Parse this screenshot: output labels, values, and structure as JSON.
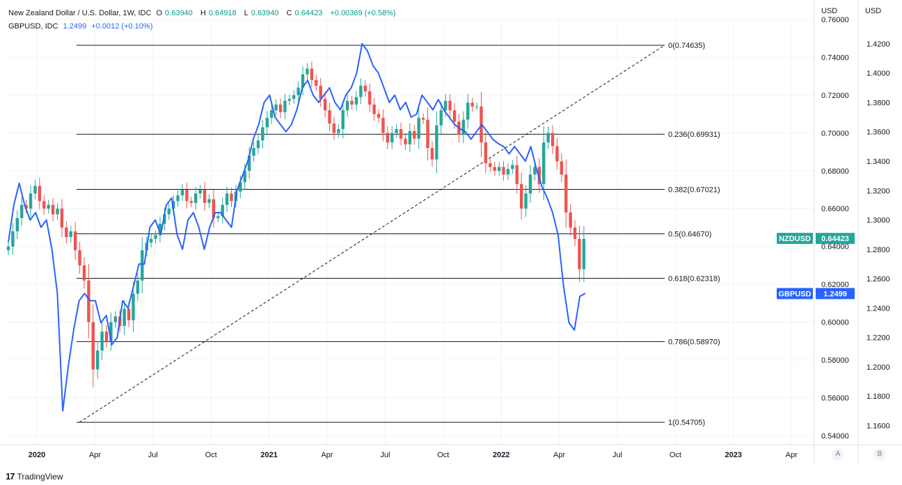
{
  "legend": {
    "main_symbol": "New Zealand Dollar / U.S. Dollar, 1W, IDC",
    "o_label": "O",
    "o": "0.63940",
    "h_label": "H",
    "h": "0.64918",
    "l_label": "L",
    "l": "0.63940",
    "c_label": "C",
    "c": "0.64423",
    "change": "+0.00369 (+0.58%)",
    "compare_symbol": "GBPUSD, IDC",
    "compare_value": "1.2499",
    "compare_change": "+0.0012 (+0.10%)"
  },
  "axes": {
    "left_currency": "USD",
    "right_currency": "USD",
    "btn_a": "A",
    "btn_b": "B"
  },
  "footer": {
    "brand": "TradingView"
  },
  "colors": {
    "up": "#26a69a",
    "down": "#ef5350",
    "compare": "#2962ff",
    "nzd_badge": "#26a69a",
    "gbp_badge": "#2962ff"
  },
  "chart_data": {
    "type": "candlestick",
    "time_labels": [
      "2020",
      "Apr",
      "Jul",
      "Oct",
      "2021",
      "Apr",
      "Jul",
      "Oct",
      "2022",
      "Apr",
      "Jul",
      "Oct",
      "2023",
      "Apr"
    ],
    "nzd_axis": {
      "ticks": [
        "0.76000",
        "0.74000",
        "0.72000",
        "0.70000",
        "0.68000",
        "0.66000",
        "0.64000",
        "0.62000",
        "0.60000",
        "0.58000",
        "0.56000",
        "0.54000"
      ],
      "range": [
        0.5352,
        0.76
      ]
    },
    "gbp_axis": {
      "ticks": [
        "1.4200",
        "1.4000",
        "1.3800",
        "1.3600",
        "1.3400",
        "1.3200",
        "1.3000",
        "1.2800",
        "1.2600",
        "1.2400",
        "1.2200",
        "1.2000",
        "1.1800",
        "1.1600"
      ],
      "range": [
        1.147,
        1.4365
      ]
    },
    "nzd_badge": {
      "name": "NZDUSD",
      "value": "0.64423",
      "price": 0.64423
    },
    "gbp_badge": {
      "name": "GBPUSD",
      "value": "1.2499",
      "price": 1.2499
    },
    "fibonacci": [
      {
        "label": "0(0.74635)",
        "price": 0.74635
      },
      {
        "label": "0.236(0.69931)",
        "price": 0.69931
      },
      {
        "label": "0.382(0.67021)",
        "price": 0.67021
      },
      {
        "label": "0.5(0.64670)",
        "price": 0.6467
      },
      {
        "label": "0.618(0.62318)",
        "price": 0.62318
      },
      {
        "label": "0.786(0.58970)",
        "price": 0.5897
      },
      {
        "label": "1(0.54705)",
        "price": 0.54705
      }
    ],
    "nzd_close": [
      0.64,
      0.648,
      0.655,
      0.662,
      0.66,
      0.668,
      0.672,
      0.664,
      0.66,
      0.662,
      0.657,
      0.66,
      0.65,
      0.645,
      0.648,
      0.638,
      0.63,
      0.622,
      0.6,
      0.575,
      0.585,
      0.595,
      0.59,
      0.6,
      0.603,
      0.598,
      0.607,
      0.601,
      0.615,
      0.622,
      0.638,
      0.642,
      0.644,
      0.646,
      0.652,
      0.657,
      0.66,
      0.664,
      0.667,
      0.67,
      0.664,
      0.663,
      0.668,
      0.67,
      0.663,
      0.665,
      0.655,
      0.656,
      0.662,
      0.668,
      0.664,
      0.669,
      0.674,
      0.68,
      0.688,
      0.692,
      0.696,
      0.703,
      0.708,
      0.712,
      0.715,
      0.711,
      0.717,
      0.718,
      0.72,
      0.724,
      0.731,
      0.734,
      0.728,
      0.725,
      0.718,
      0.712,
      0.705,
      0.7,
      0.702,
      0.712,
      0.717,
      0.715,
      0.719,
      0.725,
      0.722,
      0.715,
      0.71,
      0.708,
      0.7,
      0.695,
      0.7,
      0.702,
      0.697,
      0.694,
      0.701,
      0.697,
      0.708,
      0.707,
      0.692,
      0.686,
      0.704,
      0.712,
      0.717,
      0.712,
      0.706,
      0.699,
      0.707,
      0.716,
      0.714,
      0.714,
      0.695,
      0.684,
      0.682,
      0.68,
      0.682,
      0.678,
      0.681,
      0.683,
      0.673,
      0.66,
      0.668,
      0.678,
      0.682,
      0.673,
      0.695,
      0.7,
      0.693,
      0.685,
      0.678,
      0.658,
      0.65,
      0.644,
      0.628,
      0.644
    ],
    "gbp_close": [
      1.285,
      1.31,
      1.325,
      1.31,
      1.3,
      1.305,
      1.295,
      1.3,
      1.28,
      1.25,
      1.17,
      1.2,
      1.225,
      1.245,
      1.25,
      1.245,
      1.245,
      1.23,
      1.235,
      1.215,
      1.22,
      1.245,
      1.24,
      1.255,
      1.27,
      1.27,
      1.295,
      1.3,
      1.29,
      1.31,
      1.315,
      1.29,
      1.28,
      1.3,
      1.305,
      1.295,
      1.28,
      1.295,
      1.305,
      1.305,
      1.3,
      1.295,
      1.32,
      1.33,
      1.34,
      1.355,
      1.365,
      1.38,
      1.385,
      1.37,
      1.365,
      1.36,
      1.365,
      1.375,
      1.39,
      1.395,
      1.385,
      1.38,
      1.385,
      1.39,
      1.38,
      1.375,
      1.385,
      1.39,
      1.4,
      1.42,
      1.415,
      1.405,
      1.4,
      1.39,
      1.38,
      1.385,
      1.375,
      1.38,
      1.37,
      1.372,
      1.385,
      1.38,
      1.375,
      1.382,
      1.375,
      1.37,
      1.365,
      1.362,
      1.36,
      1.355,
      1.36,
      1.365,
      1.36,
      1.355,
      1.352,
      1.35,
      1.345,
      1.35,
      1.345,
      1.34,
      1.35,
      1.335,
      1.323,
      1.315,
      1.305,
      1.29,
      1.255,
      1.23,
      1.225,
      1.248,
      1.25
    ]
  }
}
